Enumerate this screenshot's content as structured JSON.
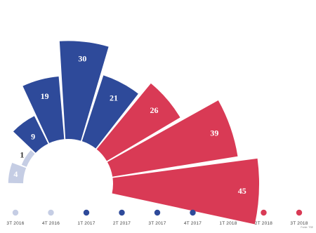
{
  "chart_data": {
    "type": "bar",
    "subtype": "radial-fan",
    "categories": [
      "3T 2016",
      "4T 2016",
      "1T 2017",
      "2T 2017",
      "3T 2017",
      "4T 2017",
      "1T 2018",
      "2T 2018",
      "3T 2018"
    ],
    "values": [
      4,
      1,
      9,
      19,
      30,
      21,
      26,
      39,
      45
    ],
    "value_labels": [
      "4",
      "1",
      "9",
      "19",
      "30",
      "21",
      "26",
      "39",
      "45"
    ],
    "colors": [
      "#c5cde4",
      "#c5cde4",
      "#2e4a9a",
      "#2e4a9a",
      "#2e4a9a",
      "#2e4a9a",
      "#d93a55",
      "#d93a55",
      "#d93a55"
    ],
    "source_note": "Fonte: TSE",
    "legend_placement": "bottom"
  }
}
